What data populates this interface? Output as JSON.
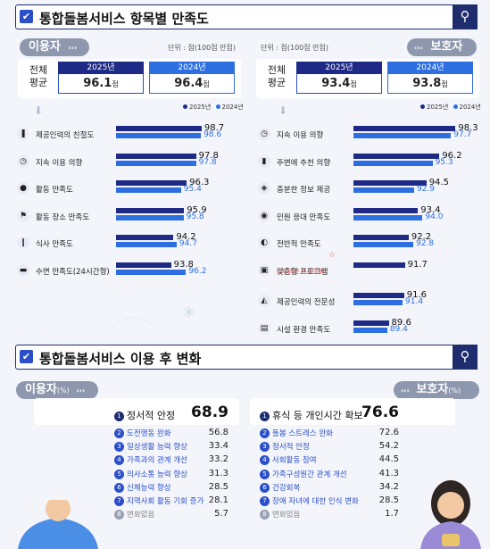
{
  "section1": {
    "title": "통합돌봄서비스 항목별 만족도"
  },
  "section2": {
    "title": "통합돌봄서비스 이용 후 변화"
  },
  "left_panel": {
    "pill": "이용자",
    "unit": "단위 : 점(100점 만점)",
    "avg_label_1": "전체",
    "avg_label_2": "평균",
    "year_2025": "2025년",
    "year_2024": "2024년",
    "avg_2025": "96.1",
    "avg_2024": "96.4",
    "avg_suffix": "점",
    "legend_2025": "2025년",
    "legend_2024": "2024년"
  },
  "right_panel": {
    "pill": "보호자",
    "unit": "단위 : 점(100점 만점)",
    "avg_label_1": "전체",
    "avg_label_2": "평균",
    "year_2025": "2025년",
    "year_2024": "2024년",
    "avg_2025": "93.4",
    "avg_2024": "93.8",
    "avg_suffix": "점",
    "legend_2025": "2025년",
    "legend_2024": "2024년",
    "new_tag": "(2025년 신규 항목)"
  },
  "change": {
    "left_pill": "이용자",
    "left_pill_sub": "(%)",
    "right_pill": "보호자",
    "right_pill_sub": "(%)"
  },
  "colors": {
    "navy": "#1f2d6e",
    "blue2025": "#1e2a86",
    "blue2024": "#2d6fe0",
    "accent": "#2b4fc8"
  },
  "chart_data": [
    {
      "type": "bar",
      "categories": [
        "제공인력의 친절도",
        "지속 이용 의향",
        "활동 만족도",
        "활동 장소 만족도",
        "식사 만족도",
        "수면 만족도(24시간형)"
      ],
      "icons": [
        "person-icon",
        "clock-icon",
        "activity-icon",
        "place-icon",
        "meal-icon",
        "bed-icon"
      ],
      "series": [
        {
          "name": "2025년",
          "values": [
            98.7,
            97.8,
            96.3,
            95.9,
            94.2,
            93.8
          ]
        },
        {
          "name": "2024년",
          "values": [
            98.6,
            97.8,
            95.4,
            95.8,
            94.7,
            96.2
          ]
        }
      ],
      "ylim": [
        0,
        100
      ]
    },
    {
      "type": "bar",
      "categories": [
        "지속 이용 의향",
        "주변에 추천 의향",
        "충분한 정보 제공",
        "민원 응대 만족도",
        "전반적 만족도",
        "맞춤형 프로그램",
        "제공인력의 전문성",
        "시설 환경 만족도"
      ],
      "icons": [
        "clock-icon",
        "recommend-icon",
        "info-icon",
        "support-icon",
        "overall-icon",
        "program-icon",
        "expert-icon",
        "facility-icon"
      ],
      "series": [
        {
          "name": "2025년",
          "values": [
            98.3,
            96.2,
            94.5,
            93.4,
            92.2,
            91.7,
            91.6,
            89.6
          ]
        },
        {
          "name": "2024년",
          "values": [
            97.7,
            95.3,
            92.9,
            94.0,
            92.8,
            null,
            91.4,
            89.4
          ]
        }
      ],
      "ylim": [
        0,
        100
      ]
    },
    {
      "type": "table",
      "categories": [
        "정서적 안정",
        "도전행동 완화",
        "일상생활 능력 향상",
        "가족과의 관계 개선",
        "의사소통 능력 향상",
        "신체능력 향상",
        "지역사회 활동 기회 증가",
        "변화없음"
      ],
      "values": [
        68.9,
        56.8,
        33.4,
        33.2,
        31.3,
        28.5,
        28.1,
        5.7
      ]
    },
    {
      "type": "table",
      "categories": [
        "휴식 등 개인시간 확보",
        "돌봄 스트레스 완화",
        "정서적 안정",
        "사회활동 참여",
        "가족구성원간 관계 개선",
        "건강회복",
        "장애 자녀에 대한 인식 변화",
        "변화없음"
      ],
      "values": [
        76.6,
        72.6,
        54.2,
        44.5,
        41.3,
        34.2,
        28.5,
        1.7
      ]
    }
  ]
}
